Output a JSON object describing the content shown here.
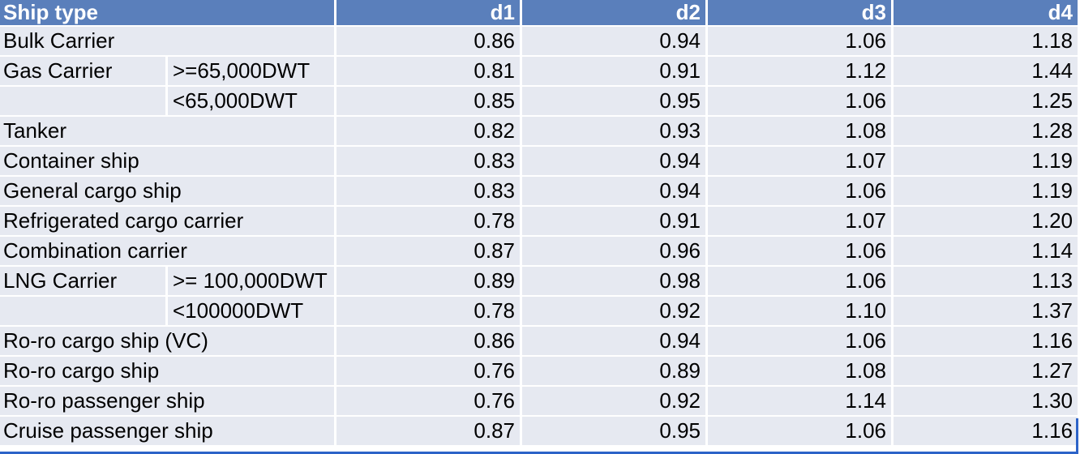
{
  "table": {
    "headers": [
      "Ship type",
      "d1",
      "d2",
      "d3",
      "d4"
    ],
    "rows": [
      {
        "type": "Bulk Carrier",
        "sub": "",
        "d": [
          "0.86",
          "0.94",
          "1.06",
          "1.18"
        ]
      },
      {
        "type": "Gas Carrier",
        "sub": ">=65,000DWT",
        "d": [
          "0.81",
          "0.91",
          "1.12",
          "1.44"
        ]
      },
      {
        "type": "",
        "sub": "<65,000DWT",
        "d": [
          "0.85",
          "0.95",
          "1.06",
          "1.25"
        ]
      },
      {
        "type": "Tanker",
        "sub": "",
        "d": [
          "0.82",
          "0.93",
          "1.08",
          "1.28"
        ]
      },
      {
        "type": "Container ship",
        "sub": "",
        "d": [
          "0.83",
          "0.94",
          "1.07",
          "1.19"
        ]
      },
      {
        "type": "General cargo ship",
        "sub": "",
        "d": [
          "0.83",
          "0.94",
          "1.06",
          "1.19"
        ]
      },
      {
        "type": "Refrigerated cargo carrier",
        "sub": "",
        "d": [
          "0.78",
          "0.91",
          "1.07",
          "1.20"
        ]
      },
      {
        "type": "Combination carrier",
        "sub": "",
        "d": [
          "0.87",
          "0.96",
          "1.06",
          "1.14"
        ]
      },
      {
        "type": "LNG Carrier",
        "sub": ">= 100,000DWT",
        "d": [
          "0.89",
          "0.98",
          "1.06",
          "1.13"
        ]
      },
      {
        "type": "",
        "sub": "<100000DWT",
        "d": [
          "0.78",
          "0.92",
          "1.10",
          "1.37"
        ]
      },
      {
        "type": "Ro-ro cargo ship (VC)",
        "sub": "",
        "d": [
          "0.86",
          "0.94",
          "1.06",
          "1.16"
        ]
      },
      {
        "type": "Ro-ro cargo ship",
        "sub": "",
        "d": [
          "0.76",
          "0.89",
          "1.08",
          "1.27"
        ]
      },
      {
        "type": "Ro-ro passenger ship",
        "sub": "",
        "d": [
          "0.76",
          "0.92",
          "1.14",
          "1.30"
        ]
      },
      {
        "type": "Cruise passenger ship",
        "sub": "",
        "d": [
          "0.87",
          "0.95",
          "1.06",
          "1.16"
        ]
      }
    ]
  },
  "colors": {
    "header_bg": "#5a7fbb",
    "header_text": "#ffffff",
    "cell_bg": "#e6e9f1",
    "selection_edge": "#2c63c8"
  }
}
